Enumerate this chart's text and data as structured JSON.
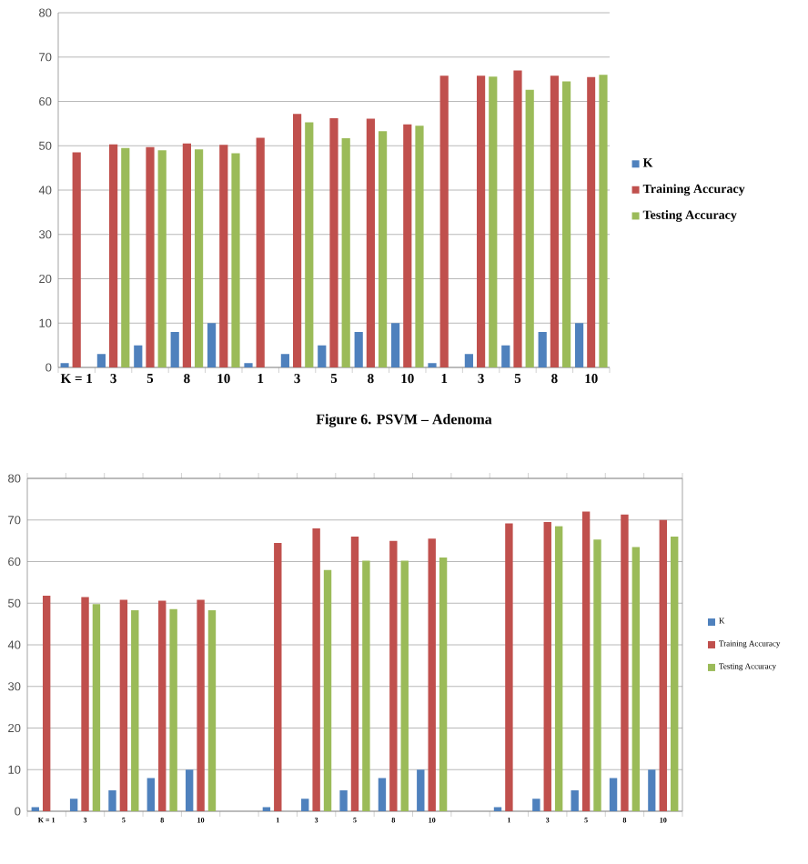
{
  "chart_data": [
    {
      "type": "bar",
      "annotations": [
        "Figure 6. PSVM – Adenoma"
      ],
      "categories": [
        "K = 1",
        "3",
        "5",
        "8",
        "10",
        "1",
        "3",
        "5",
        "8",
        "10",
        "1",
        "3",
        "5",
        "8",
        "10"
      ],
      "series": [
        {
          "name": "K",
          "color": "#4f81bd",
          "values": [
            1,
            3,
            5,
            8,
            10,
            1,
            3,
            5,
            8,
            10,
            1,
            3,
            5,
            8,
            10
          ]
        },
        {
          "name": "Training Accuracy",
          "color": "#c0504d",
          "values": [
            48.5,
            50.3,
            49.7,
            50.5,
            50.2,
            51.8,
            57.2,
            56.2,
            56.1,
            54.8,
            65.8,
            65.8,
            67,
            65.8,
            65.5
          ]
        },
        {
          "name": "Testing Accuracy",
          "color": "#9bbb59",
          "values": [
            null,
            49.5,
            49,
            49.2,
            48.3,
            null,
            55.3,
            51.7,
            53.3,
            54.5,
            null,
            65.6,
            62.6,
            64.5,
            66
          ]
        }
      ],
      "ylim": [
        0,
        80
      ],
      "yticks": [
        0,
        10,
        20,
        30,
        40,
        50,
        60,
        70,
        80
      ],
      "grid": "y",
      "legend": "right"
    },
    {
      "type": "bar",
      "categories": [
        "K = 1",
        "3",
        "5",
        "8",
        "10",
        null,
        "1",
        "3",
        "5",
        "8",
        "10",
        null,
        "1",
        "3",
        "5",
        "8",
        "10"
      ],
      "series": [
        {
          "name": "K",
          "color": "#4f81bd",
          "values": [
            1,
            3,
            5,
            8,
            10,
            null,
            1,
            3,
            5,
            8,
            10,
            null,
            1,
            3,
            5,
            8,
            10
          ]
        },
        {
          "name": "Training Accuracy",
          "color": "#c0504d",
          "values": [
            51.8,
            51.5,
            50.8,
            50.6,
            50.8,
            null,
            64.5,
            68,
            66,
            65,
            65.5,
            null,
            69.2,
            69.5,
            72,
            71.3,
            70
          ]
        },
        {
          "name": "Testing Accuracy",
          "color": "#9bbb59",
          "values": [
            null,
            49.8,
            48.3,
            48.6,
            48.3,
            null,
            null,
            58,
            60.2,
            60.2,
            61,
            null,
            null,
            68.5,
            65.3,
            63.5,
            66
          ]
        }
      ],
      "ylim": [
        0,
        80
      ],
      "yticks": [
        0,
        10,
        20,
        30,
        40,
        50,
        60,
        70,
        80
      ],
      "grid": "y",
      "legend": "right"
    }
  ]
}
